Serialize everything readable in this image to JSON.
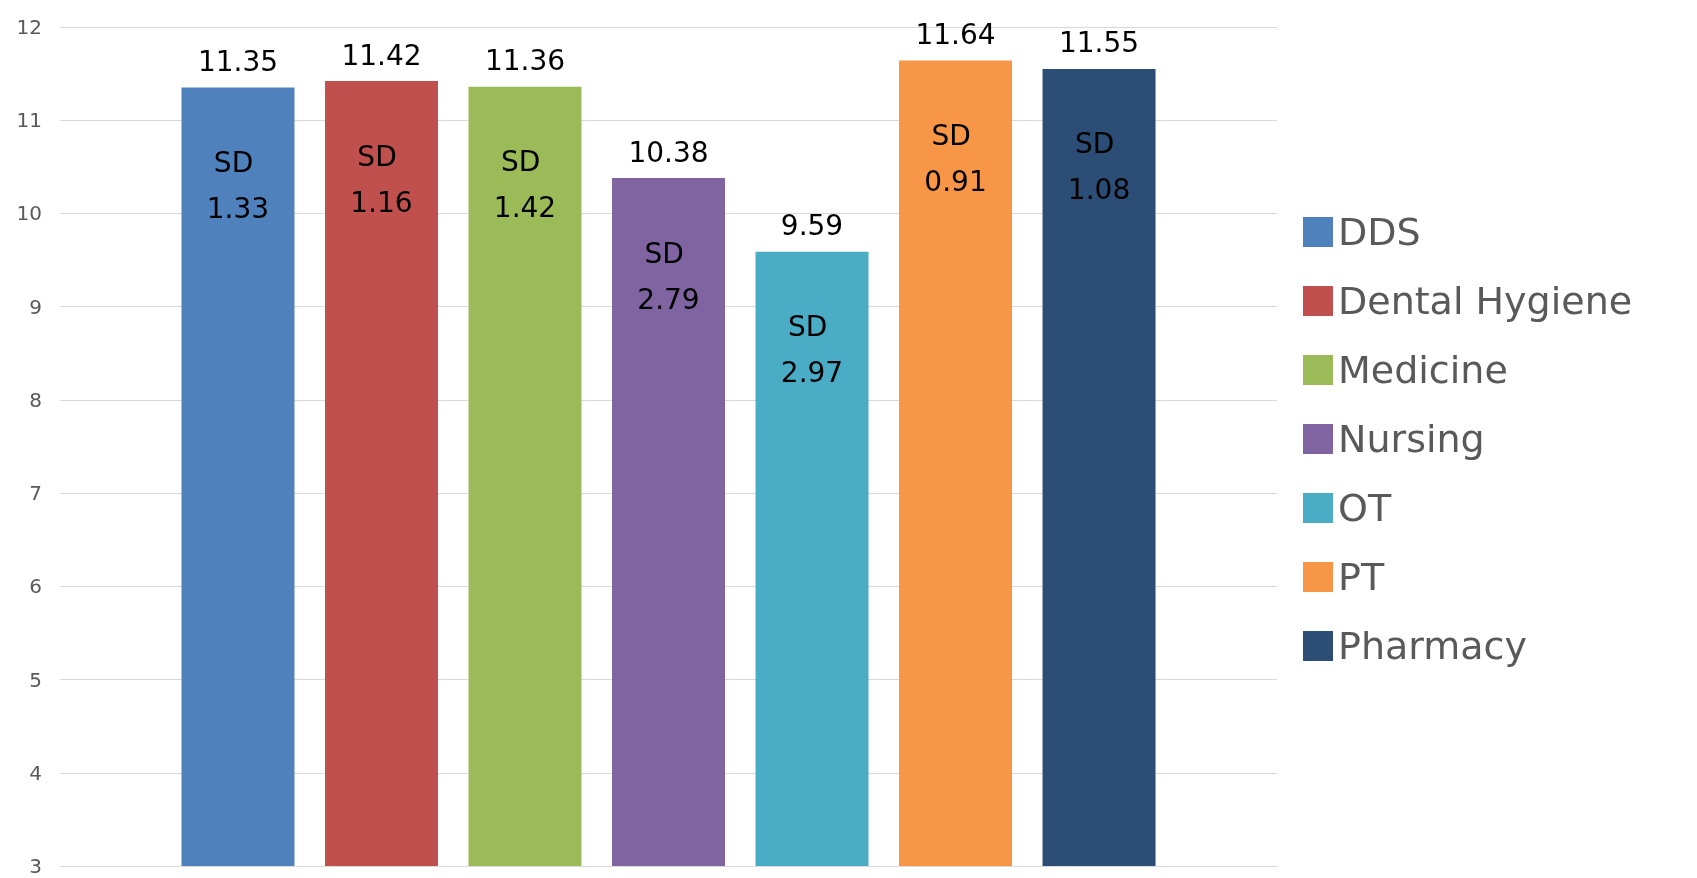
{
  "chart_data": {
    "type": "bar",
    "categories": [
      null
    ],
    "series": [
      {
        "name": "DDS",
        "color": "#4f81bd",
        "values": [
          11.35
        ]
      },
      {
        "name": "Dental Hygiene",
        "color": "#c0504d",
        "values": [
          11.42
        ]
      },
      {
        "name": "Medicine",
        "color": "#9bbb59",
        "values": [
          11.36
        ]
      },
      {
        "name": "Nursing",
        "color": "#8064a2",
        "values": [
          10.38
        ]
      },
      {
        "name": "OT",
        "color": "#4bacc6",
        "values": [
          9.59
        ]
      },
      {
        "name": "PT",
        "color": "#f79646",
        "values": [
          11.64
        ]
      },
      {
        "name": "Pharmacy",
        "color": "#2c4d75",
        "values": [
          11.55
        ]
      }
    ],
    "annotations": [
      "SD 1.33",
      "SD 1.16",
      "SD 1.42",
      "SD 2.79",
      "SD 2.97",
      "SD 0.91",
      "SD 1.08"
    ],
    "ylim": [
      3,
      12
    ],
    "yticks": [
      3,
      4,
      5,
      6,
      7,
      8,
      9,
      10,
      11,
      12
    ],
    "grid": "y",
    "legend": "right",
    "data_labels": true
  }
}
